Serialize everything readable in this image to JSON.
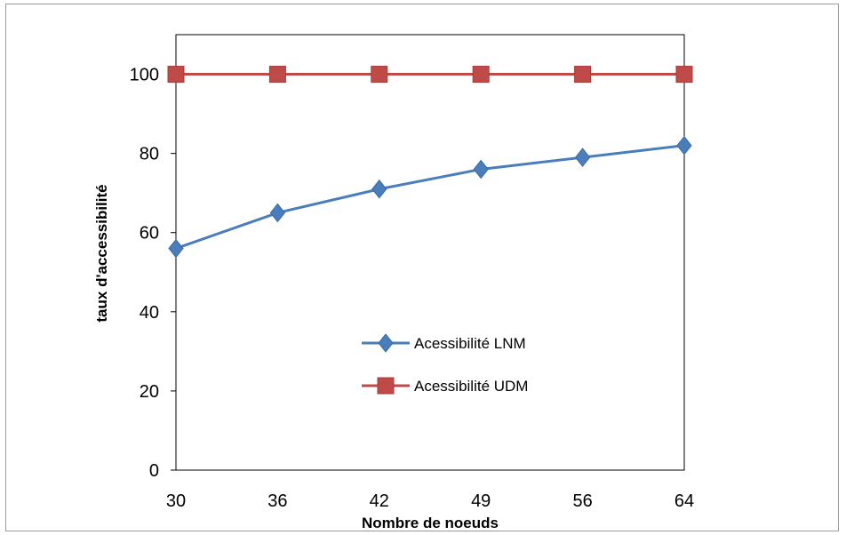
{
  "chart_data": {
    "type": "line",
    "title": "",
    "xlabel": "Nombre de noeuds",
    "ylabel": "taux d'accessibilité",
    "categories": [
      "30",
      "36",
      "42",
      "49",
      "56",
      "64"
    ],
    "ylim": [
      0,
      110
    ],
    "yticks": [
      0,
      20,
      40,
      60,
      80,
      100
    ],
    "grid": false,
    "legend_position": "center",
    "series": [
      {
        "name": "Acessibilité LNM",
        "values": [
          56,
          65,
          71,
          76,
          79,
          82
        ],
        "color": "#4a7ebb",
        "marker": "diamond"
      },
      {
        "name": "Acessibilité UDM",
        "values": [
          100,
          100,
          100,
          100,
          100,
          100
        ],
        "color": "#be4b48",
        "marker": "square"
      }
    ]
  }
}
